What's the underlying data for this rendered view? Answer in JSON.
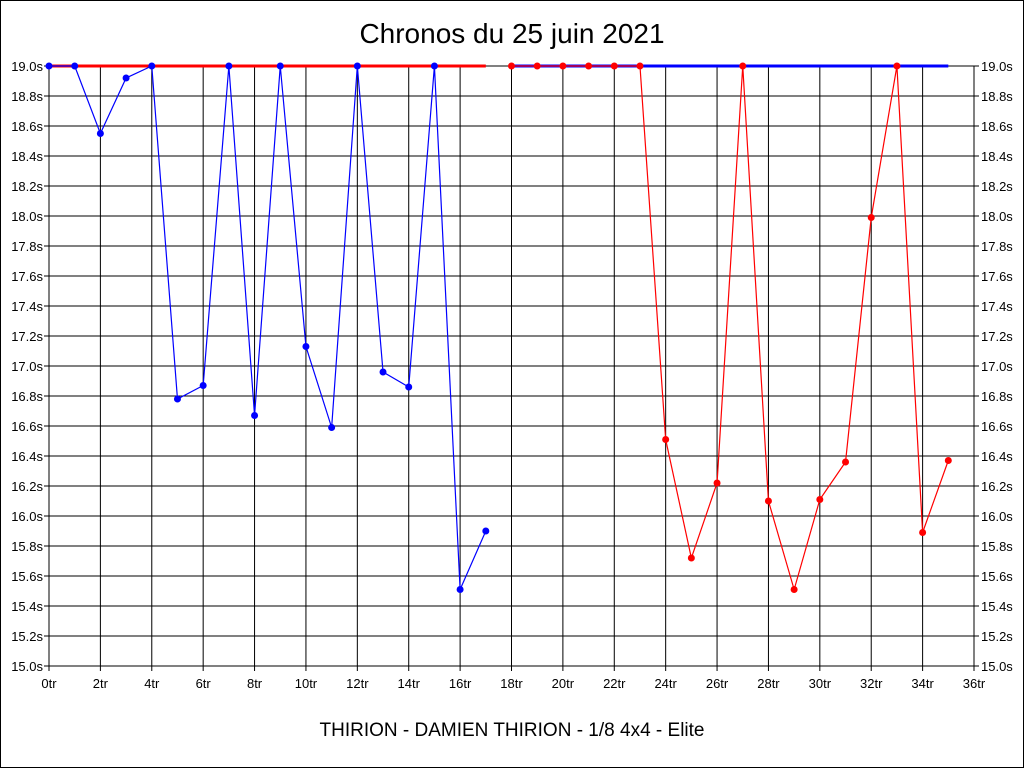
{
  "chart_data": {
    "type": "line",
    "title": "Chronos du 25 juin 2021",
    "footer": "THIRION - DAMIEN THIRION - 1/8 4x4 - Elite",
    "xlabel": "",
    "ylabel": "",
    "xlim": [
      0,
      36
    ],
    "ylim": [
      15.0,
      19.0
    ],
    "grid": true,
    "x_ticks": [
      "0tr",
      "2tr",
      "4tr",
      "6tr",
      "8tr",
      "10tr",
      "12tr",
      "14tr",
      "16tr",
      "18tr",
      "20tr",
      "22tr",
      "24tr",
      "26tr",
      "28tr",
      "30tr",
      "32tr",
      "34tr",
      "36tr"
    ],
    "y_ticks": [
      "15.0s",
      "15.2s",
      "15.4s",
      "15.6s",
      "15.8s",
      "16.0s",
      "16.2s",
      "16.4s",
      "16.6s",
      "16.8s",
      "17.0s",
      "17.2s",
      "17.4s",
      "17.6s",
      "17.8s",
      "18.0s",
      "18.2s",
      "18.4s",
      "18.6s",
      "18.8s",
      "19.0s"
    ],
    "series": [
      {
        "color": "#0000ff",
        "cap_line": [
          0,
          17
        ],
        "points": [
          [
            0,
            19.0
          ],
          [
            1,
            19.0
          ],
          [
            2,
            18.55
          ],
          [
            3,
            18.92
          ],
          [
            4,
            19.0
          ],
          [
            5,
            16.78
          ],
          [
            6,
            16.87
          ],
          [
            7,
            19.0
          ],
          [
            8,
            16.67
          ],
          [
            9,
            19.0
          ],
          [
            10,
            17.13
          ],
          [
            11,
            16.59
          ],
          [
            12,
            19.0
          ],
          [
            13,
            16.96
          ],
          [
            14,
            16.86
          ],
          [
            15,
            19.0
          ],
          [
            16,
            15.51
          ],
          [
            17,
            15.9
          ]
        ]
      },
      {
        "color": "#ff0000",
        "cap_line": [
          18,
          35
        ],
        "points": [
          [
            18,
            19.0
          ],
          [
            19,
            19.0
          ],
          [
            20,
            19.0
          ],
          [
            21,
            19.0
          ],
          [
            22,
            19.0
          ],
          [
            23,
            19.0
          ],
          [
            24,
            16.51
          ],
          [
            25,
            15.72
          ],
          [
            26,
            16.22
          ],
          [
            27,
            19.0
          ],
          [
            28,
            16.1
          ],
          [
            29,
            15.51
          ],
          [
            30,
            16.11
          ],
          [
            31,
            16.36
          ],
          [
            32,
            17.99
          ],
          [
            33,
            19.0
          ],
          [
            34,
            15.89
          ],
          [
            35,
            16.37
          ]
        ]
      }
    ]
  }
}
